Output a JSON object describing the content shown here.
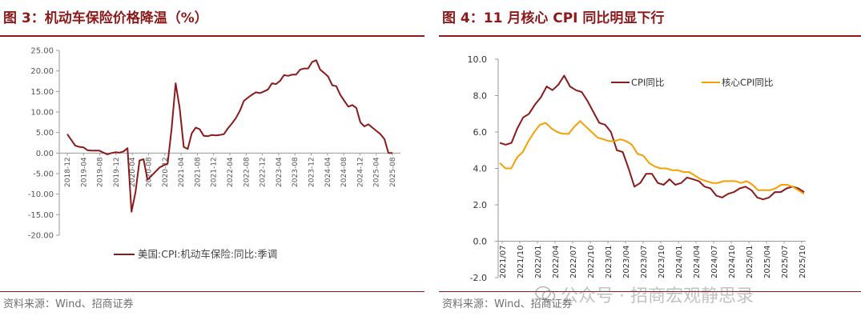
{
  "left": {
    "title": "图 3：机动车保险价格降温（%）",
    "source": "资料来源：Wind、招商证券",
    "colors": {
      "title": "#8b1a1a",
      "series": "#8b1a1a"
    },
    "chart_data": {
      "type": "line",
      "title": "",
      "yticks": [
        "25.00",
        "20.00",
        "15.00",
        "10.00",
        "5.00",
        "0.00",
        "-5.00",
        "-10.00",
        "-15.00",
        "-20.00"
      ],
      "ylim": [
        -20,
        25
      ],
      "xticks": [
        "2018-12",
        "2019-04",
        "2019-08",
        "2019-12",
        "2020-04",
        "2020-08",
        "2020-12",
        "2021-04",
        "2021-08",
        "2021-12",
        "2022-04",
        "2022-08",
        "2022-12",
        "2023-04",
        "2023-08",
        "2023-12",
        "2024-04",
        "2024-08",
        "2024-12",
        "2025-04",
        "2025-08"
      ],
      "legend": "美国:CPI:机动车保险:同比:季调",
      "series": [
        {
          "name": "美国:CPI:机动车保险:同比:季调",
          "values": [
            4.6,
            3.2,
            1.8,
            1.5,
            1.4,
            0.7,
            0.6,
            0.6,
            0.6,
            0.1,
            -0.3,
            0.0,
            0.2,
            0.1,
            0.4,
            1.2,
            -14.3,
            -9.5,
            -1.8,
            -1.5,
            -6.5,
            -5.5,
            -4.5,
            -3.5,
            -3.0,
            -2.6,
            6.0,
            17.0,
            11.0,
            1.5,
            1.0,
            4.8,
            6.2,
            5.8,
            4.2,
            4.1,
            4.4,
            4.3,
            4.4,
            4.6,
            6.0,
            7.2,
            8.5,
            10.3,
            12.7,
            13.5,
            14.2,
            14.8,
            14.6,
            15.0,
            15.5,
            17.0,
            16.8,
            17.6,
            19.0,
            18.8,
            19.1,
            19.1,
            20.3,
            20.6,
            20.6,
            22.2,
            22.6,
            20.3,
            19.5,
            18.6,
            16.5,
            16.3,
            14.2,
            12.7,
            11.3,
            11.7,
            11.0,
            7.5,
            6.5,
            7.0,
            6.2,
            5.4,
            4.6,
            3.4,
            0.0,
            0.0
          ]
        }
      ]
    }
  },
  "right": {
    "title": "图 4：11 月核心 CPI 同比明显下行",
    "source": "资料来源：Wind、招商证券",
    "watermark": "公众号 · 招商宏观静思录",
    "colors": {
      "title": "#8b1a1a",
      "cpi": "#8b1a1a",
      "core": "#f4a000"
    },
    "chart_data": {
      "type": "line",
      "title": "",
      "yticks": [
        "10.0",
        "8.0",
        "6.0",
        "4.0",
        "2.0",
        "0.0",
        "-2.0"
      ],
      "ylim": [
        -2,
        10
      ],
      "xticks": [
        "2021/07",
        "2021/10",
        "2022/01",
        "2022/04",
        "2022/07",
        "2022/10",
        "2023/01",
        "2023/04",
        "2023/07",
        "2023/10",
        "2024/01",
        "2024/04",
        "2024/07",
        "2024/10",
        "2025/01",
        "2025/04",
        "2025/07",
        "2025/10"
      ],
      "series": [
        {
          "name": "CPI同比",
          "values": [
            5.4,
            5.3,
            5.4,
            6.2,
            6.8,
            7.0,
            7.5,
            7.9,
            8.5,
            8.3,
            8.6,
            9.1,
            8.5,
            8.3,
            8.2,
            7.7,
            7.1,
            6.5,
            6.4,
            6.0,
            5.0,
            4.9,
            4.0,
            3.0,
            3.2,
            3.7,
            3.7,
            3.2,
            3.1,
            3.4,
            3.1,
            3.2,
            3.5,
            3.4,
            3.3,
            3.0,
            2.9,
            2.5,
            2.4,
            2.6,
            2.7,
            2.9,
            3.0,
            2.8,
            2.4,
            2.3,
            2.4,
            2.7,
            2.7,
            2.9,
            3.0,
            2.9,
            2.7
          ]
        },
        {
          "name": "核心CPI同比",
          "values": [
            4.3,
            4.0,
            4.0,
            4.6,
            4.9,
            5.5,
            6.0,
            6.4,
            6.5,
            6.2,
            6.0,
            5.9,
            5.9,
            6.3,
            6.6,
            6.3,
            6.0,
            5.7,
            5.6,
            5.5,
            5.5,
            5.6,
            5.5,
            5.3,
            4.8,
            4.7,
            4.3,
            4.1,
            4.0,
            4.0,
            3.9,
            3.9,
            3.8,
            3.8,
            3.6,
            3.4,
            3.3,
            3.2,
            3.2,
            3.3,
            3.3,
            3.3,
            3.2,
            3.3,
            3.1,
            2.8,
            2.8,
            2.8,
            2.9,
            3.1,
            3.1,
            3.0,
            2.8,
            2.6
          ]
        }
      ]
    }
  }
}
